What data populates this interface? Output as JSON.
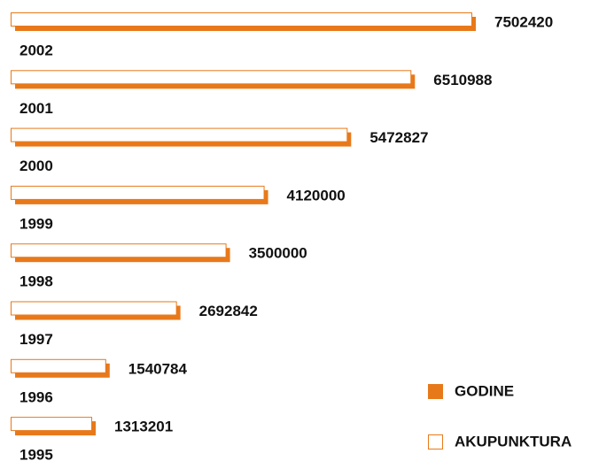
{
  "chart_data": {
    "type": "bar",
    "categories": [
      "2002",
      "2001",
      "2000",
      "1999",
      "1998",
      "1997",
      "1996",
      "1995"
    ],
    "values": [
      7502420,
      6510988,
      5472827,
      4120000,
      3500000,
      2692842,
      1540784,
      1313201
    ],
    "series": [
      {
        "name": "GODINE",
        "color": "#e8791a"
      },
      {
        "name": "AKUPUNKTURA",
        "color": "#ffffff"
      }
    ]
  }
}
